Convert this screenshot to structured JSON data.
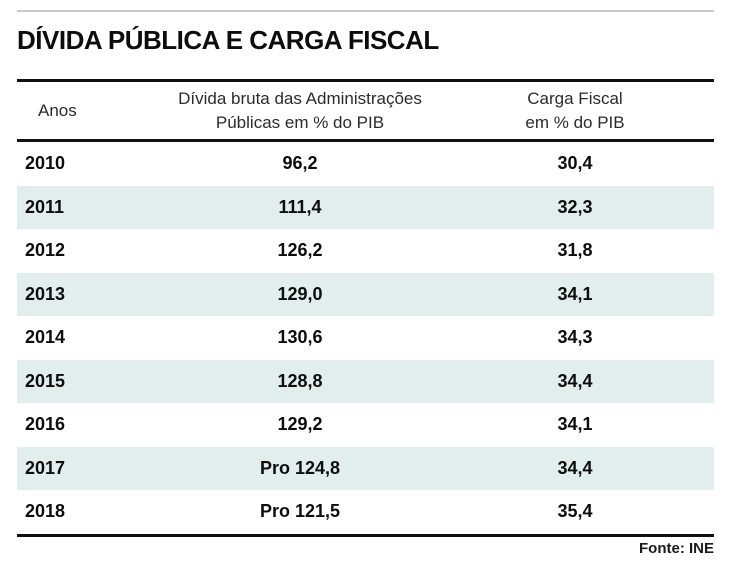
{
  "page": {
    "title": "DÍVIDA PÚBLICA E CARGA FISCAL",
    "source": "Fonte: INE"
  },
  "table": {
    "headers": {
      "year": "Anos",
      "debt": "Dívida bruta das Administrações\nPúblicas em % do PIB",
      "tax": "Carga Fiscal\nem % do PIB"
    },
    "rows": [
      {
        "year": "2010",
        "debt": "96,2",
        "tax": "30,4"
      },
      {
        "year": "2011",
        "debt": "111,4",
        "tax": "32,3"
      },
      {
        "year": "2012",
        "debt": "126,2",
        "tax": "31,8"
      },
      {
        "year": "2013",
        "debt": "129,0",
        "tax": "34,1"
      },
      {
        "year": "2014",
        "debt": "130,6",
        "tax": "34,3"
      },
      {
        "year": "2015",
        "debt": "128,8",
        "tax": "34,4"
      },
      {
        "year": "2016",
        "debt": "129,2",
        "tax": "34,1"
      },
      {
        "year": "2017",
        "debt": "Pro 124,8",
        "tax": "34,4"
      },
      {
        "year": "2018",
        "debt": "Pro 121,5",
        "tax": "35,4"
      }
    ]
  },
  "colors": {
    "stripe": "#e2eeee",
    "rule_dark": "#121212",
    "rule_light": "#c9c9c9"
  },
  "chart_data": {
    "type": "table",
    "title": "DÍVIDA PÚBLICA E CARGA FISCAL",
    "columns": [
      "Anos",
      "Dívida bruta das Administrações Públicas em % do PIB",
      "Carga Fiscal em % do PIB"
    ],
    "categories": [
      "2010",
      "2011",
      "2012",
      "2013",
      "2014",
      "2015",
      "2016",
      "2017",
      "2018"
    ],
    "series": [
      {
        "name": "Dívida bruta das Administrações Públicas em % do PIB",
        "values": [
          96.2,
          111.4,
          126.2,
          129.0,
          130.6,
          128.8,
          129.2,
          124.8,
          121.5
        ],
        "value_prefix_notes": {
          "2017": "Pro",
          "2018": "Pro"
        }
      },
      {
        "name": "Carga Fiscal em % do PIB",
        "values": [
          30.4,
          32.3,
          31.8,
          34.1,
          34.3,
          34.4,
          34.1,
          34.4,
          35.4
        ]
      }
    ],
    "layout": {
      "striped_rows": true,
      "stripe_color": "#e2eeee",
      "decimal_separator": ","
    },
    "source": "Fonte: INE"
  }
}
